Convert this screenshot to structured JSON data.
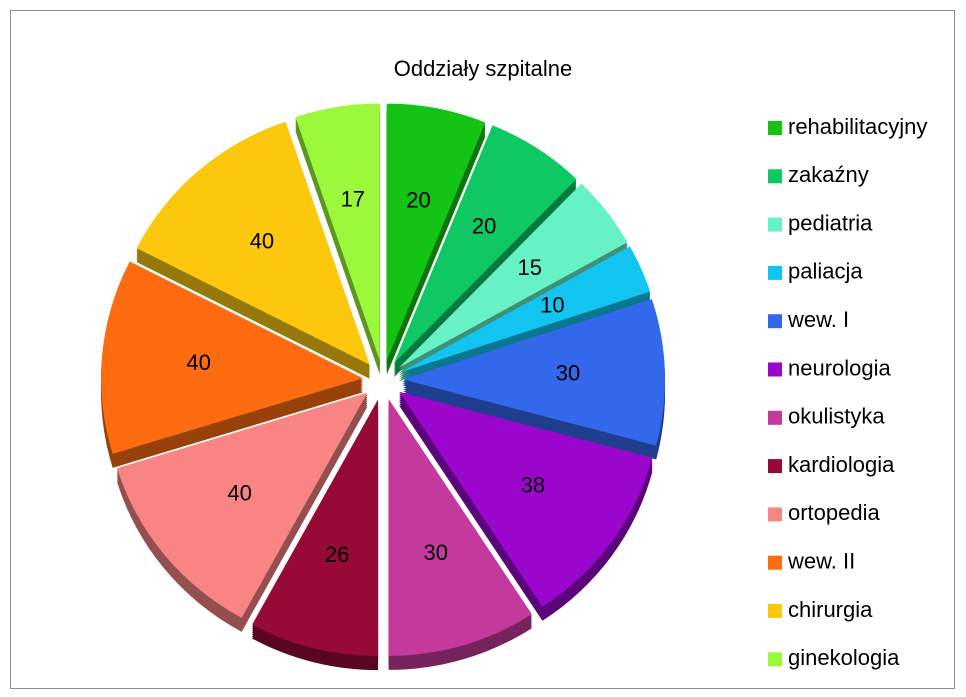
{
  "chart_data": {
    "type": "pie",
    "title": "Oddziały szpitalne",
    "categories": [
      "rehabilitacyjny",
      "zakaźny",
      "pediatria",
      "paliacja",
      "wew. I",
      "neurologia",
      "okulistyka",
      "kardiologia",
      "ortopedia",
      "wew. II",
      "chirurgia",
      "ginekologia"
    ],
    "values": [
      20,
      20,
      15,
      10,
      30,
      38,
      30,
      26,
      40,
      40,
      40,
      17
    ],
    "colors": [
      "#14c414",
      "#0fc864",
      "#66f2c4",
      "#12c4f0",
      "#3468ec",
      "#9a06cc",
      "#c43a9c",
      "#970a36",
      "#f88484",
      "#fd6c10",
      "#fcc80e",
      "#9cf83a"
    ],
    "legend": "right"
  }
}
